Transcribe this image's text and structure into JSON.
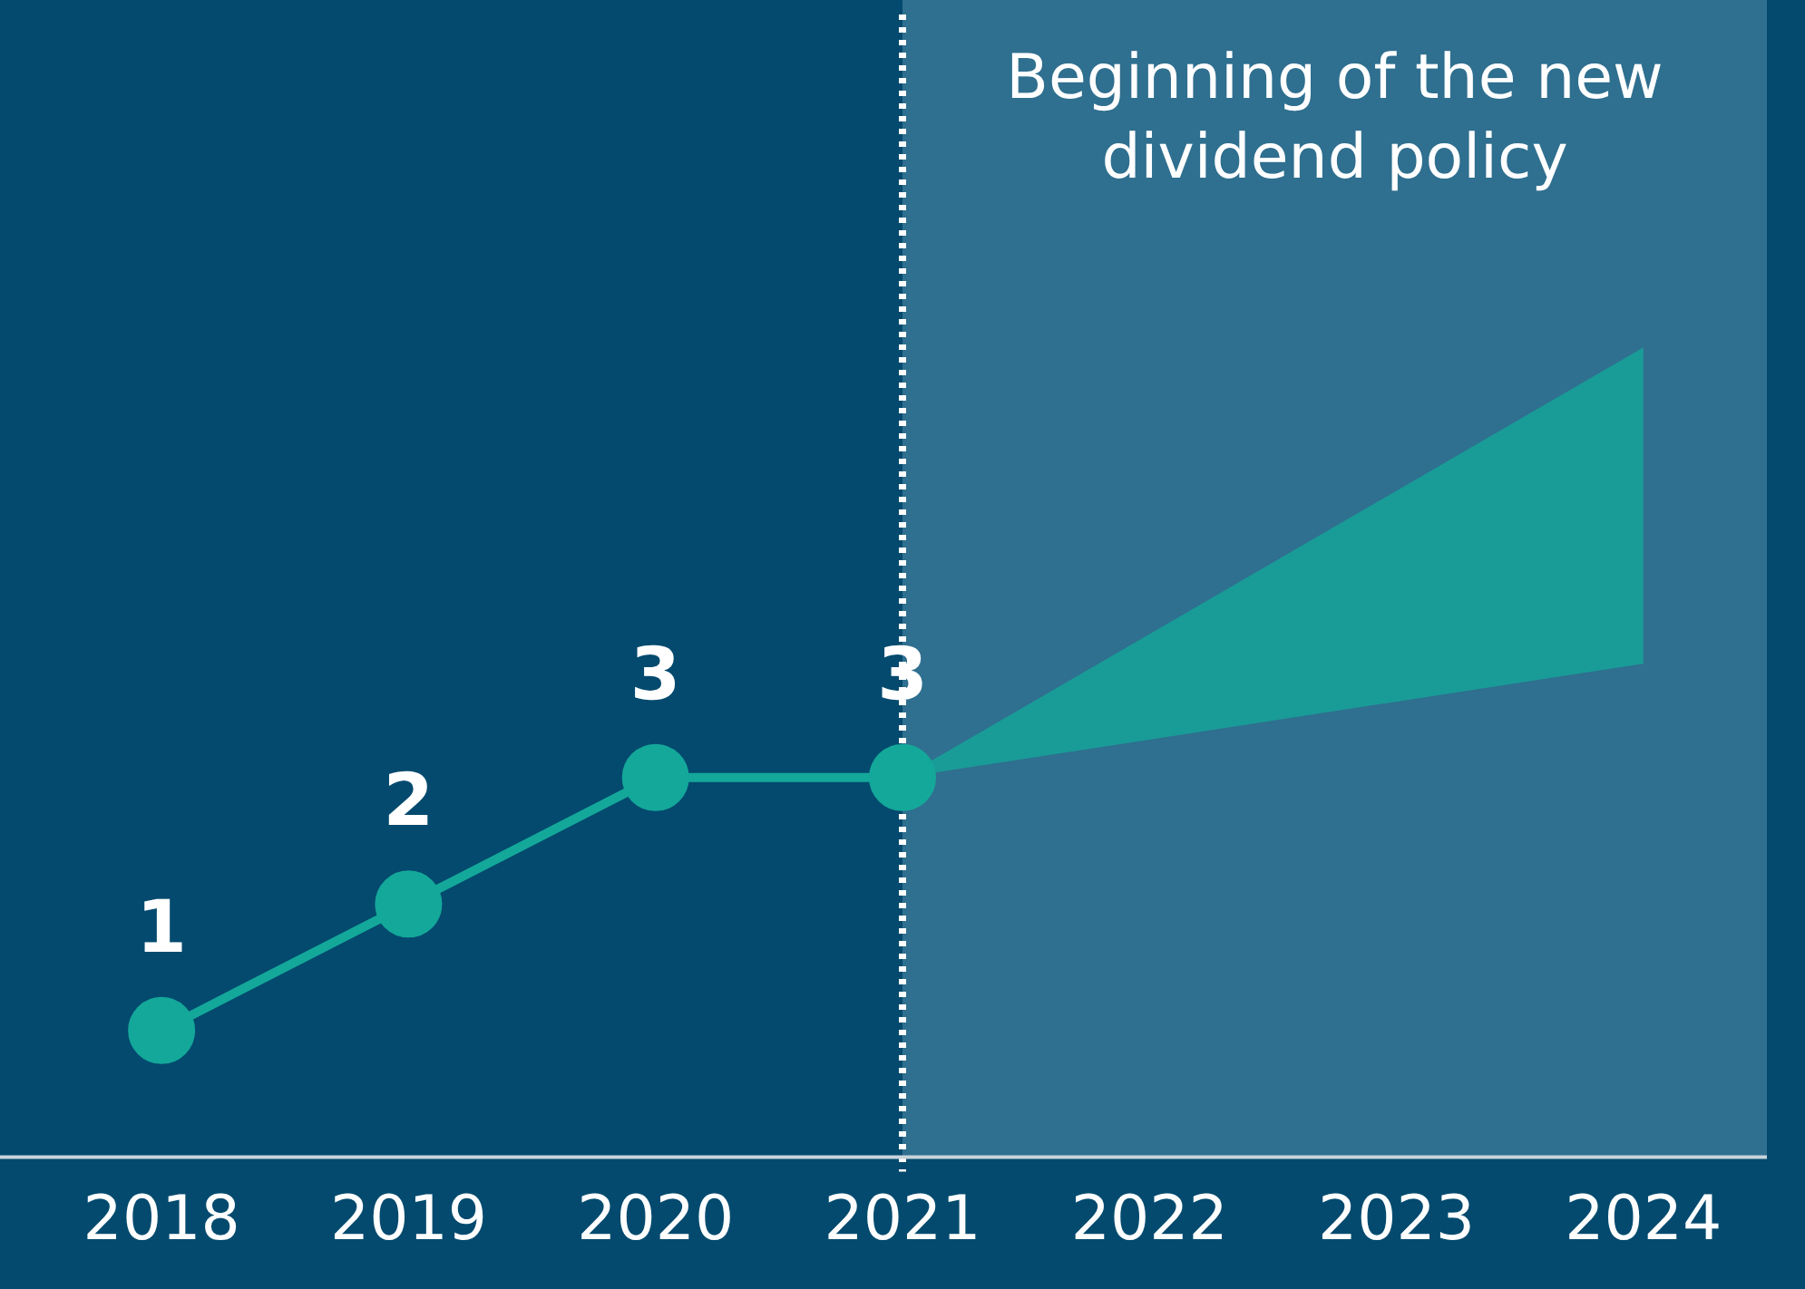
{
  "chart_data": {
    "type": "line",
    "categories": [
      "2018",
      "2019",
      "2020",
      "2021",
      "2022",
      "2023",
      "2024"
    ],
    "series": [
      {
        "color": "#14a89a",
        "values": [
          1,
          2,
          3,
          3,
          null,
          null,
          null
        ],
        "lower": [
          null,
          null,
          null,
          3,
          null,
          null,
          3.9
        ],
        "upper": [
          null,
          null,
          null,
          3,
          null,
          null,
          6.4
        ]
      }
    ],
    "tick_labels": "x",
    "data_labels": true,
    "marker": "circle",
    "grid": false,
    "legend": false,
    "bands": [
      {
        "axis": "x",
        "from": "2021",
        "to": "2024",
        "label": "Beginning of the new dividend policy",
        "color": "#2f6f8f"
      }
    ],
    "ref_lines": [
      {
        "axis": "x",
        "value": "2021",
        "line_style": "dotted",
        "color": "#ffffff"
      }
    ]
  }
}
